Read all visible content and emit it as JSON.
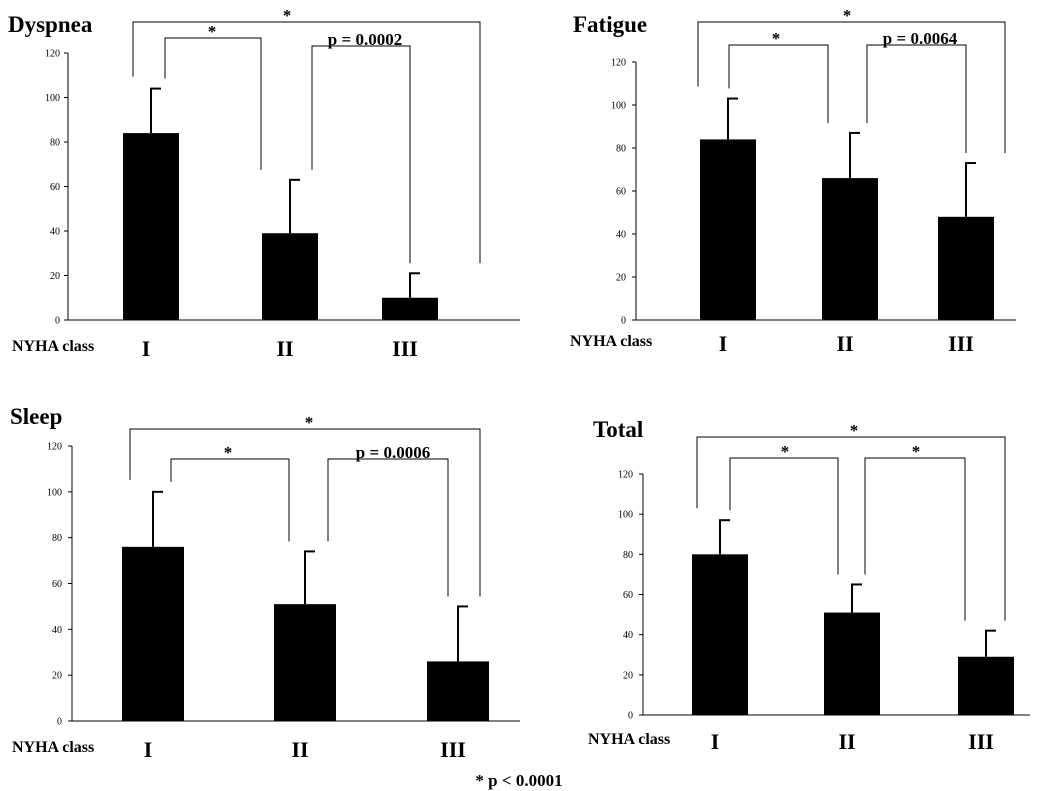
{
  "chart_data": [
    {
      "type": "bar",
      "title": "Dyspnea",
      "xlabel": "NYHA class",
      "categories": [
        "I",
        "II",
        "III"
      ],
      "values": [
        84,
        39,
        10
      ],
      "errors": [
        20,
        24,
        11
      ],
      "ylim": [
        0,
        120
      ],
      "yticks": [
        "0",
        "20",
        "40",
        "60",
        "80",
        "100",
        "120"
      ],
      "annotations": {
        "I_II": "*",
        "II_III": "p = 0.0002",
        "I_III": "*"
      }
    },
    {
      "type": "bar",
      "title": "Fatigue",
      "xlabel": "NYHA class",
      "categories": [
        "I",
        "II",
        "III"
      ],
      "values": [
        84,
        66,
        48
      ],
      "errors": [
        19,
        21,
        25
      ],
      "ylim": [
        0,
        120
      ],
      "yticks": [
        "0",
        "20",
        "40",
        "60",
        "80",
        "100",
        "120"
      ],
      "annotations": {
        "I_II": "*",
        "II_III": "p = 0.0064",
        "I_III": "*"
      }
    },
    {
      "type": "bar",
      "title": "Sleep",
      "xlabel": "NYHA class",
      "categories": [
        "I",
        "II",
        "III"
      ],
      "values": [
        76,
        51,
        26
      ],
      "errors": [
        24,
        23,
        24
      ],
      "ylim": [
        0,
        120
      ],
      "yticks": [
        "0",
        "20",
        "40",
        "60",
        "80",
        "100",
        "120"
      ],
      "annotations": {
        "I_II": "*",
        "II_III": "p = 0.0006",
        "I_III": "*"
      }
    },
    {
      "type": "bar",
      "title": "Total",
      "xlabel": "NYHA class",
      "categories": [
        "I",
        "II",
        "III"
      ],
      "values": [
        80,
        51,
        29
      ],
      "errors": [
        17,
        14,
        13
      ],
      "ylim": [
        0,
        120
      ],
      "yticks": [
        "0",
        "20",
        "40",
        "60",
        "80",
        "100",
        "120"
      ],
      "annotations": {
        "I_II": "*",
        "II_III": "*",
        "I_III": "*"
      }
    }
  ],
  "footnote": "* p < 0.0001",
  "colors": {
    "bar": "#000000",
    "background": "#ffffff"
  }
}
